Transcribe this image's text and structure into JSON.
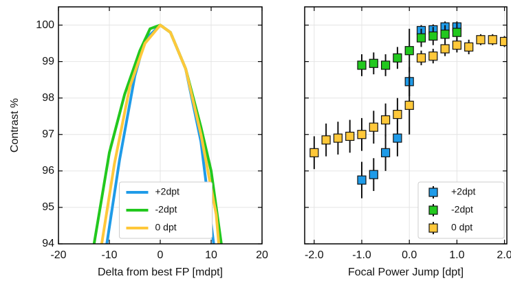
{
  "chart_data": [
    {
      "type": "line",
      "xlabel": "Delta from best FP [mdpt]",
      "ylabel": "Contrast %",
      "xlim": [
        -20,
        20
      ],
      "xticks": [
        -20,
        -10,
        0,
        10,
        20
      ],
      "ylim": [
        94,
        100.5
      ],
      "yticks": [
        94,
        95,
        96,
        97,
        98,
        99,
        100
      ],
      "grid": true,
      "legend": "lower center",
      "series": [
        {
          "name": "+2dpt",
          "color": "#1f9be8",
          "x": [
            -10.5,
            -8,
            -5,
            -3,
            0,
            2,
            5,
            8,
            10.5
          ],
          "values": [
            94,
            96.3,
            98.6,
            99.6,
            100,
            99.8,
            98.8,
            96.8,
            94
          ]
        },
        {
          "name": "-2dpt",
          "color": "#22c81e",
          "x": [
            -13,
            -10,
            -7,
            -4,
            -2,
            0,
            2,
            5,
            8,
            10,
            12
          ],
          "values": [
            94,
            96.5,
            98.1,
            99.3,
            99.9,
            100,
            99.8,
            98.8,
            97.2,
            96,
            94
          ]
        },
        {
          "name": "0 dpt",
          "color": "#ffc83a",
          "x": [
            -11.5,
            -9,
            -6,
            -3,
            0,
            2,
            5,
            8,
            11,
            11.5
          ],
          "values": [
            94,
            96.2,
            98.3,
            99.5,
            100,
            99.8,
            98.8,
            97,
            94.8,
            94
          ]
        }
      ]
    },
    {
      "type": "errorbar",
      "xlabel": "Focal Power Jump [dpt]",
      "xlim": [
        -2.2,
        2.05
      ],
      "xticks": [
        {
          "value": -2,
          "label": "-2.0"
        },
        {
          "value": -1,
          "label": "-1.0"
        },
        {
          "value": 0,
          "label": "0.0"
        },
        {
          "value": 1,
          "label": "1.0"
        },
        {
          "value": 2,
          "label": "2.0"
        }
      ],
      "ylim": [
        94,
        100.5
      ],
      "yticks": [
        94,
        95,
        96,
        97,
        98,
        99,
        100
      ],
      "sharey": true,
      "grid": true,
      "legend": "lower right",
      "series": [
        {
          "name": "+2dpt",
          "color": "#1f9be8",
          "x": [
            -1,
            -0.75,
            -0.5,
            -0.25,
            0,
            0.25,
            0.5,
            0.75,
            1
          ],
          "values": [
            95.75,
            95.9,
            96.5,
            96.9,
            98.45,
            99.85,
            99.87,
            99.95,
            99.95
          ],
          "errors": [
            0.5,
            0.45,
            0.5,
            0.5,
            0.4,
            0.15,
            0.15,
            0.15,
            0.15
          ]
        },
        {
          "name": "-2dpt",
          "color": "#22c81e",
          "x": [
            -1,
            -0.75,
            -0.5,
            -0.25,
            0,
            0.25,
            0.5,
            0.75,
            1
          ],
          "values": [
            98.9,
            98.95,
            98.9,
            99.1,
            99.3,
            99.65,
            99.7,
            99.75,
            99.8
          ],
          "errors": [
            0.3,
            0.3,
            0.3,
            0.3,
            0.6,
            0.25,
            0.25,
            0.25,
            0.25
          ]
        },
        {
          "name": "0 dpt",
          "color": "#ffc83a",
          "x": [
            -2,
            -1.75,
            -1.5,
            -1.25,
            -1,
            -0.75,
            -0.5,
            -0.25,
            0,
            0.25,
            0.5,
            0.75,
            1,
            1.25,
            1.5,
            1.75,
            2
          ],
          "values": [
            96.5,
            96.85,
            96.9,
            96.95,
            97,
            97.2,
            97.4,
            97.55,
            97.8,
            99.1,
            99.15,
            99.35,
            99.45,
            99.4,
            99.6,
            99.6,
            99.55
          ],
          "errors": [
            0.45,
            0.45,
            0.45,
            0.45,
            0.45,
            0.45,
            0.45,
            0.45,
            0.8,
            0.2,
            0.2,
            0.2,
            0.2,
            0.2,
            0.15,
            0.15,
            0.15
          ]
        }
      ]
    }
  ]
}
